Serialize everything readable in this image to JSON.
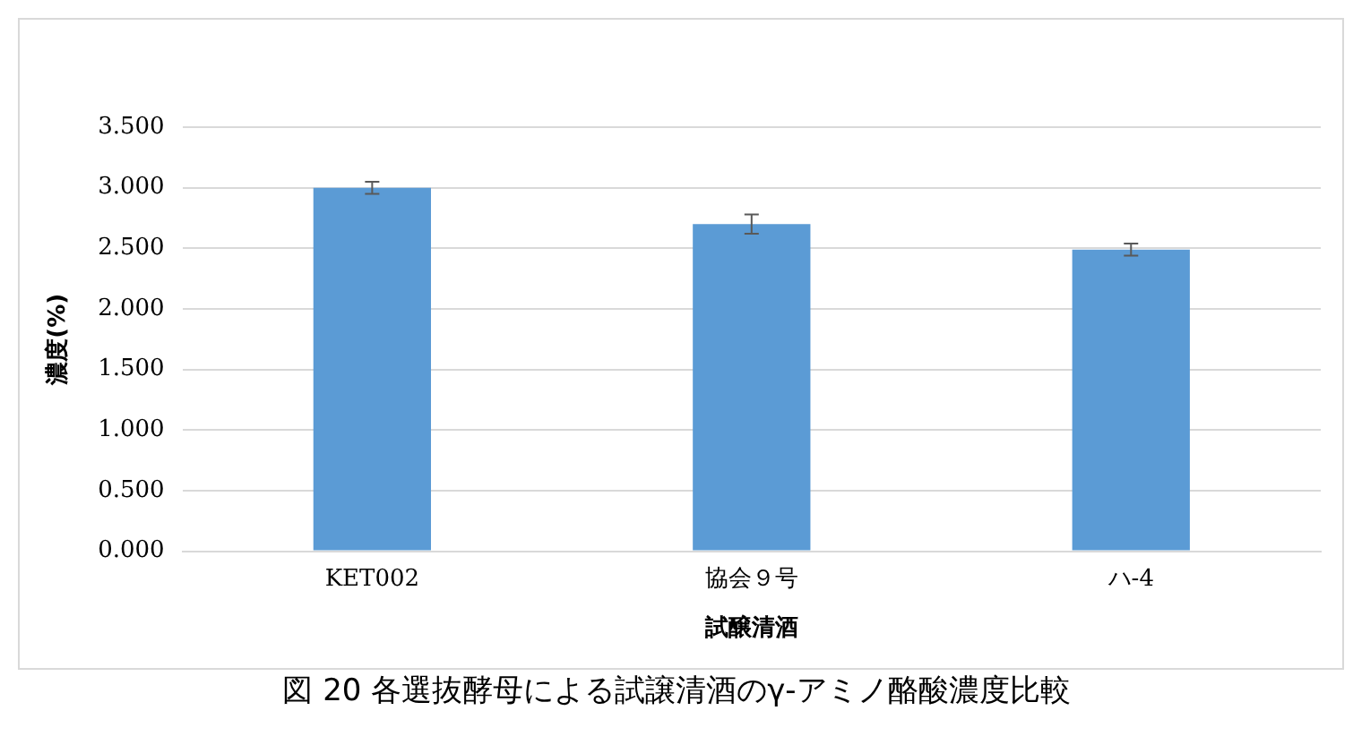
{
  "chart_data": {
    "type": "bar",
    "title": "図 20 各選抜酵母による試譲清酒のγ-アミノ酪酸濃度比較",
    "xlabel": "試醸清酒",
    "ylabel": "濃度(%)",
    "categories": [
      "KET002",
      "協会９号",
      "ハ-4"
    ],
    "values": [
      3.0,
      2.7,
      2.49
    ],
    "errors": [
      0.05,
      0.08,
      0.05
    ],
    "color": "#5b9bd5",
    "ylim": [
      0,
      3.5
    ],
    "yticks": [
      {
        "value": 0,
        "label": "0.000"
      },
      {
        "value": 0.5,
        "label": "0.500"
      },
      {
        "value": 1,
        "label": "1.000"
      },
      {
        "value": 1.5,
        "label": "1.500"
      },
      {
        "value": 2,
        "label": "2.000"
      },
      {
        "value": 2.5,
        "label": "2.500"
      },
      {
        "value": 3,
        "label": "3.000"
      },
      {
        "value": 3.5,
        "label": "3.500"
      }
    ],
    "grid": "y",
    "legend": false
  }
}
